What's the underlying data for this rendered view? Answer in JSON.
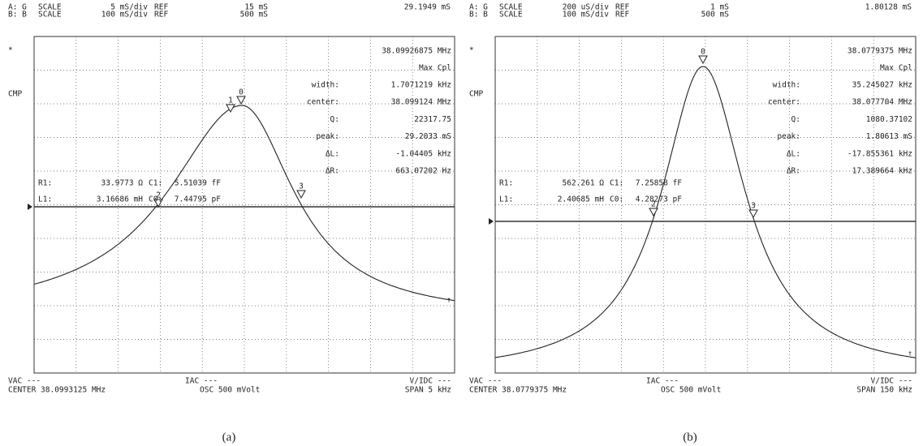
{
  "panels": [
    {
      "header": [
        {
          "channel": "A: G",
          "mode": "SCALE",
          "scale": "5 mS/div",
          "ref_label": "REF",
          "ref": "15 mS",
          "reading": "29.1949 mS"
        },
        {
          "channel": "B: B",
          "mode": "SCALE",
          "scale": "100 mS/div",
          "ref_label": "REF",
          "ref": "500 mS"
        }
      ],
      "star": "*",
      "cmp": "CMP",
      "frequency": "38.09926875 MHz",
      "search": "Max Cpl",
      "readout": [
        {
          "label": "width:",
          "value": "1.7071219 kHz"
        },
        {
          "label": "center:",
          "value": "38.099124 MHz"
        },
        {
          "label": "Q:",
          "value": "22317.75"
        },
        {
          "label": "peak:",
          "value": "29.2033 mS"
        },
        {
          "label": "ΔL:",
          "value": "-1.04405 kHz"
        },
        {
          "label": "ΔR:",
          "value": "663.07202 Hz"
        }
      ],
      "params": [
        [
          {
            "label": "R1:",
            "value": "33.9773 Ω"
          },
          {
            "label": "C1:",
            "value": "5.51039 fF"
          }
        ],
        [
          {
            "label": "L1:",
            "value": "3.16686 mH"
          },
          {
            "label": "C0:",
            "value": "7.44795 pF"
          }
        ]
      ],
      "markers": [
        "0",
        "1",
        "2",
        "3"
      ],
      "footer": {
        "vac": "VAC ---",
        "center": "CENTER 38.0993125 MHz",
        "iac": "IAC ---",
        "osc": "OSC 500 mVolt",
        "vidc": "V/IDC ---",
        "span": "SPAN 5 kHz"
      },
      "caption": "(a)"
    },
    {
      "header": [
        {
          "channel": "A: G",
          "mode": "SCALE",
          "scale": "200 uS/div",
          "ref_label": "REF",
          "ref": "1 mS",
          "reading": "1.80128 mS"
        },
        {
          "channel": "B: B",
          "mode": "SCALE",
          "scale": "100 mS/div",
          "ref_label": "REF",
          "ref": "500 mS"
        }
      ],
      "star": "*",
      "cmp": "CMP",
      "frequency": "38.0779375 MHz",
      "search": "Max Cpl",
      "readout": [
        {
          "label": "width:",
          "value": "35.245027 kHz"
        },
        {
          "label": "center:",
          "value": "38.077704 MHz"
        },
        {
          "label": "Q:",
          "value": "1080.37102"
        },
        {
          "label": "peak:",
          "value": "1.80613 mS"
        },
        {
          "label": "ΔL:",
          "value": "-17.855361 kHz"
        },
        {
          "label": "ΔR:",
          "value": "17.389664 kHz"
        }
      ],
      "params": [
        [
          {
            "label": "R1:",
            "value": "562.261 Ω"
          },
          {
            "label": "C1:",
            "value": "7.25858 fF"
          }
        ],
        [
          {
            "label": "L1:",
            "value": "2.40685 mH"
          },
          {
            "label": "C0:",
            "value": "4.28273 pF"
          }
        ]
      ],
      "markers": [
        "0",
        "2",
        "3"
      ],
      "footer": {
        "vac": "VAC ---",
        "center": "CENTER 38.0779375 MHz",
        "iac": "IAC ---",
        "osc": "OSC 500 mVolt",
        "vidc": "V/IDC ---",
        "span": "SPAN 150 kHz"
      },
      "caption": "(b)"
    }
  ]
}
